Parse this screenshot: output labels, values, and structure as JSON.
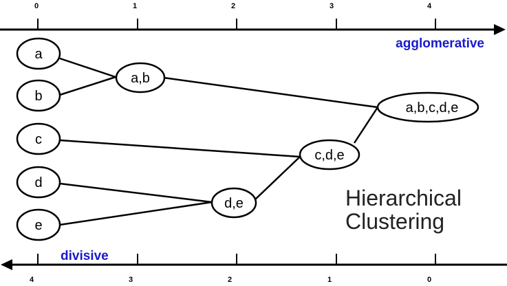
{
  "top_axis": {
    "tick_labels": [
      "0",
      "1",
      "2",
      "3",
      "4"
    ],
    "title": "agglomerative",
    "title_color": "#1a1acc"
  },
  "bottom_axis": {
    "tick_labels": [
      "4",
      "3",
      "2",
      "1",
      "0"
    ],
    "title": "divisive",
    "title_color": "#1a1acc"
  },
  "nodes": {
    "a": "a",
    "b": "b",
    "c": "c",
    "d": "d",
    "e": "e",
    "ab": "a,b",
    "de": "d,e",
    "cde": "c,d,e",
    "abcde": "a,b,c,d,e"
  },
  "caption": {
    "line1": "Hierarchical",
    "line2": "Clustering"
  }
}
